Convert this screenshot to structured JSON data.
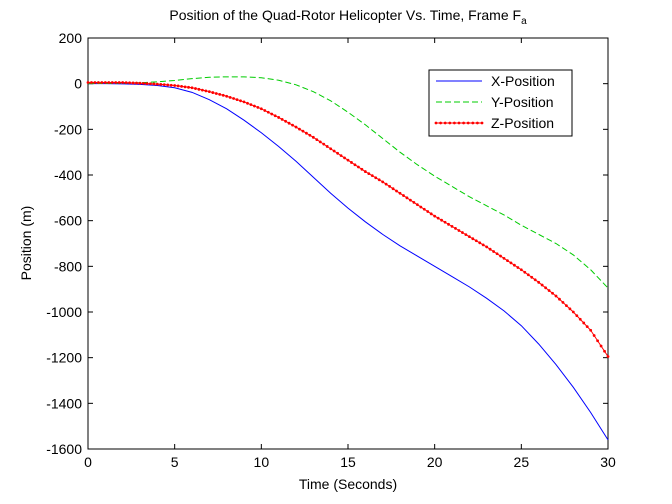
{
  "chart_data": {
    "type": "line",
    "title": "Position of the Quad-Rotor Helicopter Vs. Time, Frame F",
    "title_subscript": "a",
    "xlabel": "Time (Seconds)",
    "ylabel": "Position (m)",
    "xlim": [
      0,
      30
    ],
    "ylim": [
      -1600,
      200
    ],
    "xticks": [
      0,
      5,
      10,
      15,
      20,
      25,
      30
    ],
    "yticks": [
      200,
      0,
      -200,
      -400,
      -600,
      -800,
      -1000,
      -1200,
      -1400,
      -1600
    ],
    "grid": false,
    "legend_position": "top-right",
    "series": [
      {
        "name": "X-Position",
        "color": "#0000ff",
        "style": "solid",
        "x": [
          0,
          1,
          2,
          3,
          4,
          5,
          6,
          7,
          8,
          9,
          10,
          11,
          12,
          13,
          14,
          15,
          16,
          17,
          18,
          19,
          20,
          21,
          22,
          23,
          24,
          25,
          26,
          27,
          28,
          29,
          30
        ],
        "y": [
          0,
          0,
          -1,
          -3,
          -8,
          -18,
          -38,
          -70,
          -110,
          -160,
          -215,
          -275,
          -340,
          -410,
          -480,
          -545,
          -605,
          -660,
          -710,
          -755,
          -800,
          -845,
          -890,
          -940,
          -995,
          -1060,
          -1140,
          -1230,
          -1330,
          -1440,
          -1560
        ]
      },
      {
        "name": "Y-Position",
        "color": "#00cc00",
        "style": "dashed",
        "x": [
          0,
          1,
          2,
          3,
          4,
          5,
          6,
          7,
          8,
          9,
          10,
          11,
          12,
          13,
          14,
          15,
          16,
          17,
          18,
          19,
          20,
          21,
          22,
          23,
          24,
          25,
          26,
          27,
          28,
          29,
          30
        ],
        "y": [
          0,
          1,
          2,
          4,
          8,
          14,
          22,
          28,
          30,
          30,
          26,
          15,
          -5,
          -35,
          -75,
          -125,
          -180,
          -240,
          -300,
          -355,
          -405,
          -450,
          -495,
          -535,
          -575,
          -620,
          -660,
          -700,
          -750,
          -815,
          -895
        ]
      },
      {
        "name": "Z-Position",
        "color": "#ff0000",
        "style": "solid-dots",
        "x": [
          0,
          1,
          2,
          3,
          4,
          5,
          6,
          7,
          8,
          9,
          10,
          11,
          12,
          13,
          14,
          15,
          16,
          17,
          18,
          19,
          20,
          21,
          22,
          23,
          24,
          25,
          26,
          27,
          28,
          29,
          30
        ],
        "y": [
          5,
          5,
          5,
          2,
          -2,
          -8,
          -18,
          -35,
          -55,
          -80,
          -110,
          -148,
          -190,
          -235,
          -285,
          -335,
          -385,
          -430,
          -480,
          -530,
          -580,
          -625,
          -670,
          -715,
          -765,
          -815,
          -870,
          -930,
          -1000,
          -1080,
          -1195
        ]
      }
    ]
  }
}
